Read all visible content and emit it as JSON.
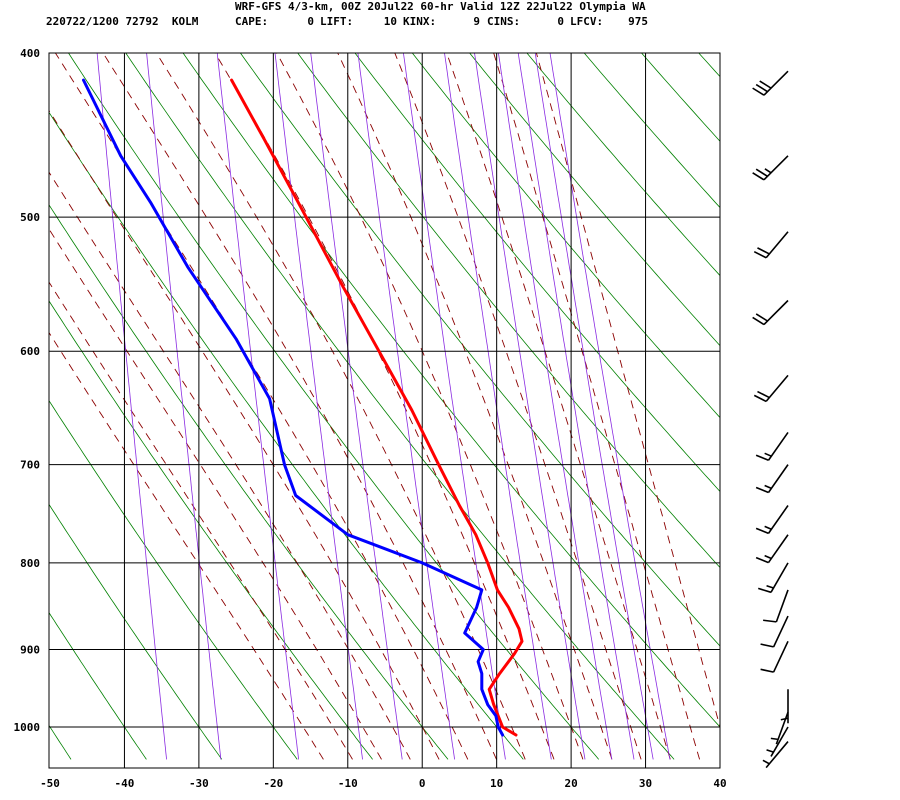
{
  "header": {
    "title": "WRF-GFS 4/3-km, 00Z 20Jul22 60-hr Valid 12Z 22Jul22 Olympia WA",
    "station_line": "220722/1200 72792  KOLM",
    "indices": [
      {
        "label": "CAPE:",
        "value": "0"
      },
      {
        "label": "LIFT:",
        "value": "10"
      },
      {
        "label": "KINX:",
        "value": "9"
      },
      {
        "label": "CINS:",
        "value": "0"
      },
      {
        "label": "LFCV:",
        "value": "975"
      }
    ]
  },
  "colors": {
    "temperature": "#ff0000",
    "dewpoint": "#0000ff",
    "isotherm": "#000000",
    "isobar": "#000000",
    "dry_adiabat": "#008000",
    "moist_adiabat": "#8b0000",
    "mixing_ratio": "#8a2be2"
  },
  "chart_data": {
    "type": "line",
    "title": "",
    "xlabel": "",
    "ylabel": "",
    "xlim": [
      -50,
      40
    ],
    "ylim": [
      1040,
      400
    ],
    "y_scale": "log-pressure",
    "x_ticks": [
      -50,
      -40,
      -30,
      -20,
      -10,
      0,
      10,
      20,
      30,
      40
    ],
    "y_ticks": [
      400,
      500,
      600,
      700,
      800,
      900,
      1000
    ],
    "grid": true,
    "series": [
      {
        "key": "temperature",
        "points": [
          {
            "p": 1011,
            "t": 12.6
          },
          {
            "p": 1000,
            "t": 10.8
          },
          {
            "p": 970,
            "t": 9.6
          },
          {
            "p": 950,
            "t": 9.0
          },
          {
            "p": 930,
            "t": 10.4
          },
          {
            "p": 905,
            "t": 12.4
          },
          {
            "p": 890,
            "t": 13.4
          },
          {
            "p": 875,
            "t": 13.0
          },
          {
            "p": 850,
            "t": 11.6
          },
          {
            "p": 830,
            "t": 10.1
          },
          {
            "p": 800,
            "t": 8.8
          },
          {
            "p": 770,
            "t": 7.2
          },
          {
            "p": 740,
            "t": 5.0
          },
          {
            "p": 700,
            "t": 2.2
          },
          {
            "p": 650,
            "t": -1.4
          },
          {
            "p": 600,
            "t": -5.8
          },
          {
            "p": 550,
            "t": -10.6
          },
          {
            "p": 500,
            "t": -15.6
          },
          {
            "p": 450,
            "t": -21.2
          },
          {
            "p": 415,
            "t": -25.6
          }
        ]
      },
      {
        "key": "dewpoint",
        "points": [
          {
            "p": 1011,
            "t": 10.8
          },
          {
            "p": 1000,
            "t": 10.2
          },
          {
            "p": 985,
            "t": 9.9
          },
          {
            "p": 970,
            "t": 8.8
          },
          {
            "p": 950,
            "t": 8.0
          },
          {
            "p": 930,
            "t": 8.0
          },
          {
            "p": 915,
            "t": 7.5
          },
          {
            "p": 900,
            "t": 8.2
          },
          {
            "p": 880,
            "t": 5.7
          },
          {
            "p": 850,
            "t": 7.3
          },
          {
            "p": 830,
            "t": 8.0
          },
          {
            "p": 800,
            "t": 0.0
          },
          {
            "p": 770,
            "t": -10.0
          },
          {
            "p": 730,
            "t": -17.0
          },
          {
            "p": 700,
            "t": -18.5
          },
          {
            "p": 640,
            "t": -20.5
          },
          {
            "p": 590,
            "t": -25.0
          },
          {
            "p": 535,
            "t": -31.5
          },
          {
            "p": 490,
            "t": -36.5
          },
          {
            "p": 460,
            "t": -40.5
          },
          {
            "p": 415,
            "t": -45.5
          }
        ]
      }
    ],
    "wind_barbs": [
      {
        "p": 410,
        "dir": 225,
        "kt": 30
      },
      {
        "p": 460,
        "dir": 225,
        "kt": 25
      },
      {
        "p": 510,
        "dir": 220,
        "kt": 20
      },
      {
        "p": 560,
        "dir": 225,
        "kt": 20
      },
      {
        "p": 620,
        "dir": 220,
        "kt": 20
      },
      {
        "p": 670,
        "dir": 215,
        "kt": 15
      },
      {
        "p": 700,
        "dir": 215,
        "kt": 15
      },
      {
        "p": 740,
        "dir": 215,
        "kt": 15
      },
      {
        "p": 770,
        "dir": 215,
        "kt": 15
      },
      {
        "p": 800,
        "dir": 210,
        "kt": 15
      },
      {
        "p": 830,
        "dir": 200,
        "kt": 10
      },
      {
        "p": 860,
        "dir": 205,
        "kt": 10
      },
      {
        "p": 890,
        "dir": 205,
        "kt": 10
      },
      {
        "p": 950,
        "dir": 180,
        "kt": 5
      },
      {
        "p": 980,
        "dir": 200,
        "kt": 5
      },
      {
        "p": 1000,
        "dir": 210,
        "kt": 5
      },
      {
        "p": 1020,
        "dir": 220,
        "kt": 5
      }
    ]
  }
}
